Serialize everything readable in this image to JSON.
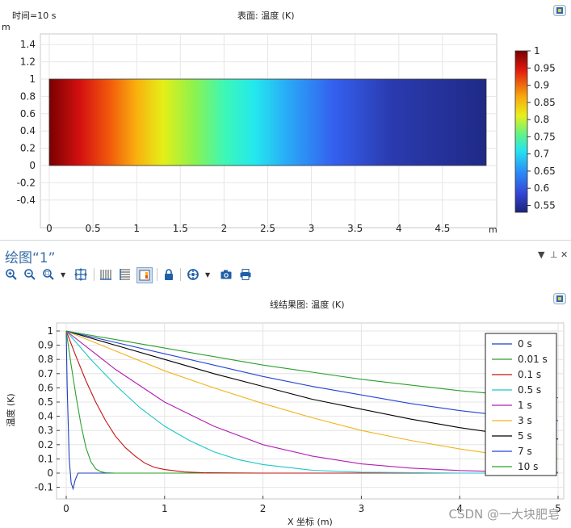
{
  "surface_plot": {
    "time_label": "时间=10 s",
    "title": "表面: 温度 (K)",
    "y_unit": "m",
    "x_unit": "m",
    "y_ticks": [
      "1.4",
      "1.2",
      "1",
      "0.8",
      "0.6",
      "0.4",
      "0.2",
      "0",
      "-0.2",
      "-0.4"
    ],
    "x_ticks": [
      "0",
      "0.5",
      "1",
      "1.5",
      "2",
      "2.5",
      "3",
      "3.5",
      "4",
      "4.5"
    ],
    "colorbar_ticks": [
      "1",
      "0.95",
      "0.9",
      "0.85",
      "0.8",
      "0.75",
      "0.7",
      "0.65",
      "0.6",
      "0.55"
    ]
  },
  "window": {
    "title": "绘图“1”",
    "controls": [
      "▼",
      "⊥",
      "✕"
    ]
  },
  "toolbar": {
    "icons": [
      "zoom-in-icon",
      "zoom-out-icon",
      "zoom-box-icon",
      "zoom-extents-icon",
      "grid-vertical-icon",
      "grid-horizontal-icon",
      "legend-icon",
      "lock-icon",
      "scene-light-icon",
      "camera-icon",
      "print-icon"
    ]
  },
  "line_plot": {
    "title": "线结果图: 温度 (K)",
    "ylabel": "温度 (K)",
    "xlabel": "X 坐标 (m)"
  },
  "watermark": "CSDN @一大块肥皂",
  "colors": {
    "accent": "#3a6ea5"
  },
  "chart_data": [
    {
      "type": "heatmap",
      "title": "表面: 温度 (K)",
      "xlabel": "",
      "ylabel": "",
      "xlim": [
        -0.4,
        5.0
      ],
      "ylim": [
        -0.5,
        1.5
      ],
      "domain_x": [
        0,
        5
      ],
      "domain_y": [
        0,
        1
      ],
      "colorbar_range": [
        0.53,
        1.0
      ],
      "profile_x": [
        0,
        0.5,
        1,
        1.5,
        2,
        2.5,
        3,
        3.5,
        4,
        4.5,
        5
      ],
      "profile_value": [
        1.0,
        0.94,
        0.87,
        0.8,
        0.74,
        0.69,
        0.65,
        0.61,
        0.58,
        0.56,
        0.54
      ],
      "grid": true
    },
    {
      "type": "line",
      "title": "线结果图: 温度 (K)",
      "xlabel": "X 坐标 (m)",
      "ylabel": "温度 (K)",
      "xlim": [
        -0.1,
        5.05
      ],
      "ylim": [
        -0.15,
        1.03
      ],
      "x_ticks": [
        0,
        1,
        2,
        3,
        4,
        5
      ],
      "y_ticks": [
        1,
        0.9,
        0.8,
        0.7,
        0.6,
        0.5,
        0.4,
        0.3,
        0.2,
        0.1,
        0,
        -0.1
      ],
      "grid": true,
      "legend_position": "top-right",
      "series": [
        {
          "name": "0 s",
          "color": "#1f3fbf",
          "x": [
            0,
            0.01,
            0.03,
            0.05,
            0.07,
            0.09,
            0.12,
            0.2,
            0.5,
            1,
            2,
            3,
            4,
            5
          ],
          "y": [
            1,
            0.6,
            0.1,
            -0.07,
            -0.11,
            -0.05,
            0,
            0,
            0,
            0,
            0,
            0,
            0,
            0
          ]
        },
        {
          "name": "0.01 s",
          "color": "#2aa02a",
          "x": [
            0,
            0.05,
            0.1,
            0.15,
            0.2,
            0.25,
            0.3,
            0.35,
            0.4,
            0.5,
            1,
            2,
            3,
            4,
            5
          ],
          "y": [
            1,
            0.76,
            0.54,
            0.34,
            0.18,
            0.08,
            0.03,
            0.01,
            0.003,
            0,
            0,
            0,
            0,
            0,
            0
          ]
        },
        {
          "name": "0.1 s",
          "color": "#c41414",
          "x": [
            0,
            0.1,
            0.2,
            0.3,
            0.4,
            0.5,
            0.6,
            0.7,
            0.8,
            0.9,
            1.0,
            1.2,
            1.4,
            2,
            3,
            4,
            5
          ],
          "y": [
            1,
            0.82,
            0.65,
            0.5,
            0.37,
            0.26,
            0.18,
            0.12,
            0.07,
            0.04,
            0.025,
            0.008,
            0.002,
            0,
            0,
            0,
            0
          ]
        },
        {
          "name": "0.5 s",
          "color": "#1ec6c6",
          "x": [
            0,
            0.25,
            0.5,
            0.75,
            1.0,
            1.25,
            1.5,
            1.75,
            2.0,
            2.5,
            3.0,
            4.0,
            5.0
          ],
          "y": [
            1,
            0.8,
            0.62,
            0.46,
            0.33,
            0.23,
            0.15,
            0.095,
            0.06,
            0.02,
            0.006,
            0,
            0
          ]
        },
        {
          "name": "1 s",
          "color": "#b31eb3",
          "x": [
            0,
            0.5,
            1.0,
            1.5,
            2.0,
            2.5,
            3.0,
            3.5,
            4.0,
            4.5,
            5.0
          ],
          "y": [
            1,
            0.73,
            0.5,
            0.33,
            0.2,
            0.12,
            0.065,
            0.035,
            0.018,
            0.009,
            0.005
          ]
        },
        {
          "name": "3 s",
          "color": "#f2b31a",
          "x": [
            0,
            0.5,
            1.0,
            1.5,
            2.0,
            2.5,
            3.0,
            3.5,
            4.0,
            4.5,
            5.0
          ],
          "y": [
            1,
            0.86,
            0.72,
            0.6,
            0.49,
            0.39,
            0.3,
            0.23,
            0.17,
            0.12,
            0.1
          ]
        },
        {
          "name": "5 s",
          "color": "#000000",
          "x": [
            0,
            0.5,
            1.0,
            1.5,
            2.0,
            2.5,
            3.0,
            3.5,
            4.0,
            4.5,
            5.0
          ],
          "y": [
            1,
            0.9,
            0.8,
            0.7,
            0.61,
            0.52,
            0.45,
            0.38,
            0.32,
            0.27,
            0.24
          ]
        },
        {
          "name": "7 s",
          "color": "#2444d6",
          "x": [
            0,
            0.5,
            1.0,
            1.5,
            2.0,
            2.5,
            3.0,
            3.5,
            4.0,
            4.5,
            5.0
          ],
          "y": [
            1,
            0.92,
            0.84,
            0.76,
            0.68,
            0.61,
            0.55,
            0.49,
            0.44,
            0.4,
            0.37
          ]
        },
        {
          "name": "10 s",
          "color": "#2aa02a",
          "x": [
            0,
            0.5,
            1.0,
            1.5,
            2.0,
            2.5,
            3.0,
            3.5,
            4.0,
            4.5,
            5.0
          ],
          "y": [
            1,
            0.94,
            0.88,
            0.82,
            0.76,
            0.71,
            0.66,
            0.62,
            0.58,
            0.55,
            0.53
          ]
        }
      ]
    }
  ]
}
